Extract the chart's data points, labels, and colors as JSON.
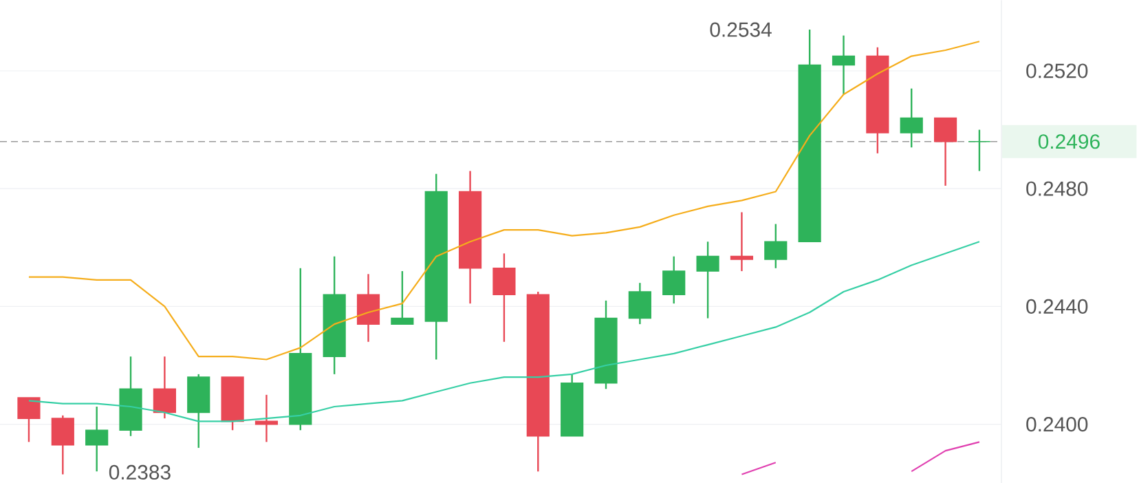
{
  "chart_data": {
    "type": "candlestick",
    "categories": [
      null,
      null,
      null,
      null,
      null,
      null,
      null,
      null,
      null,
      null,
      null,
      null,
      null,
      null,
      null,
      null,
      null,
      null,
      null,
      null,
      null,
      null,
      null,
      null,
      null,
      null,
      null,
      null,
      null
    ],
    "ohlc": [
      [
        0.2409,
        0.2409,
        0.2394,
        0.2402
      ],
      [
        0.2402,
        0.2403,
        0.2383,
        0.2393
      ],
      [
        0.2393,
        0.2406,
        0.2384,
        0.2398
      ],
      [
        0.2398,
        0.2423,
        0.2396,
        0.2412
      ],
      [
        0.2412,
        0.2423,
        0.2402,
        0.2404
      ],
      [
        0.2404,
        0.2417,
        0.2392,
        0.2416
      ],
      [
        0.2416,
        0.2416,
        0.2398,
        0.2401
      ],
      [
        0.2401,
        0.241,
        0.2394,
        0.24
      ],
      [
        0.24,
        0.2453,
        0.2398,
        0.2424
      ],
      [
        0.2423,
        0.2457,
        0.2417,
        0.2444
      ],
      [
        0.2444,
        0.2451,
        0.2428,
        0.2434
      ],
      [
        0.2434,
        0.2452,
        0.2434,
        0.2436
      ],
      [
        0.2435,
        0.2485,
        0.2422,
        0.2479
      ],
      [
        0.2479,
        0.2486,
        0.2441,
        0.2453
      ],
      [
        0.2453,
        0.2458,
        0.2428,
        0.2444
      ],
      [
        0.2444,
        0.2445,
        0.2384,
        0.2396
      ],
      [
        0.2396,
        0.2417,
        0.2396,
        0.2414
      ],
      [
        0.2414,
        0.2442,
        0.2412,
        0.2436
      ],
      [
        0.2436,
        0.2448,
        0.2434,
        0.2445
      ],
      [
        0.2444,
        0.2457,
        0.2441,
        0.2452
      ],
      [
        0.2452,
        0.2462,
        0.2436,
        0.2457
      ],
      [
        0.2457,
        0.2472,
        0.2452,
        0.2456
      ],
      [
        0.2456,
        0.2468,
        0.2453,
        0.2462
      ],
      [
        0.2462,
        0.2534,
        0.2462,
        0.2522
      ],
      [
        0.2522,
        0.2532,
        0.2512,
        0.2525
      ],
      [
        0.2525,
        0.2528,
        0.2492,
        0.2499
      ],
      [
        0.2499,
        0.2514,
        0.2494,
        0.2504
      ],
      [
        0.2504,
        0.2504,
        0.2481,
        0.2496
      ],
      [
        0.2496,
        0.25,
        0.2486,
        0.2496
      ]
    ],
    "colors": [
      "#e84855",
      "#e84855",
      "#2eb35a",
      "#2eb35a",
      "#e84855",
      "#2eb35a",
      "#e84855",
      "#e84855",
      "#2eb35a",
      "#2eb35a",
      "#e84855",
      "#2eb35a",
      "#2eb35a",
      "#e84855",
      "#e84855",
      "#e84855",
      "#2eb35a",
      "#2eb35a",
      "#2eb35a",
      "#2eb35a",
      "#2eb35a",
      "#e84855",
      "#2eb35a",
      "#2eb35a",
      "#2eb35a",
      "#e84855",
      "#2eb35a",
      "#e84855",
      "#2eb35a"
    ],
    "series": [
      {
        "type": "line",
        "color": "#f5ad1b",
        "values": [
          0.245,
          0.245,
          0.2449,
          0.2449,
          0.244,
          0.2423,
          0.2423,
          0.2422,
          0.2426,
          0.2434,
          0.2438,
          0.2441,
          0.2457,
          0.2462,
          0.2466,
          0.2466,
          0.2464,
          0.2465,
          0.2467,
          0.2471,
          0.2474,
          0.2476,
          0.2479,
          0.2498,
          0.2512,
          0.2519,
          0.2525,
          0.2527,
          0.253
        ]
      },
      {
        "type": "line",
        "color": "#36cfa5",
        "values": [
          0.2408,
          0.2407,
          0.2407,
          0.2406,
          0.2404,
          0.2401,
          0.2401,
          0.2402,
          0.2403,
          0.2406,
          0.2407,
          0.2408,
          0.2411,
          0.2414,
          0.2416,
          0.2416,
          0.2417,
          0.242,
          0.2422,
          0.2424,
          0.2427,
          0.243,
          0.2433,
          0.2438,
          0.2445,
          0.2449,
          0.2454,
          0.2458,
          0.2462
        ]
      },
      {
        "type": "line",
        "color": "#e040b0",
        "values": [
          null,
          null,
          null,
          null,
          null,
          null,
          null,
          null,
          null,
          null,
          null,
          null,
          null,
          null,
          null,
          null,
          null,
          null,
          null,
          null,
          null,
          0.2383,
          0.2387,
          null,
          null,
          null,
          0.2384,
          0.2391,
          0.2394
        ]
      }
    ],
    "ylim": [
      0.238,
      0.2544
    ],
    "yticks": [
      {
        "value": 0.24,
        "label": "0.2400"
      },
      {
        "value": 0.244,
        "label": "0.2440"
      },
      {
        "value": 0.248,
        "label": "0.2480"
      },
      {
        "value": 0.252,
        "label": "0.2520"
      }
    ],
    "grid": "y",
    "tick_labels": "y",
    "ref_lines": [
      {
        "axis": "y",
        "value": 0.2496,
        "label": "0.2496",
        "color": "#999999",
        "line_style": "dashed"
      }
    ],
    "annotations": [
      "0.2534",
      "0.2383"
    ]
  }
}
